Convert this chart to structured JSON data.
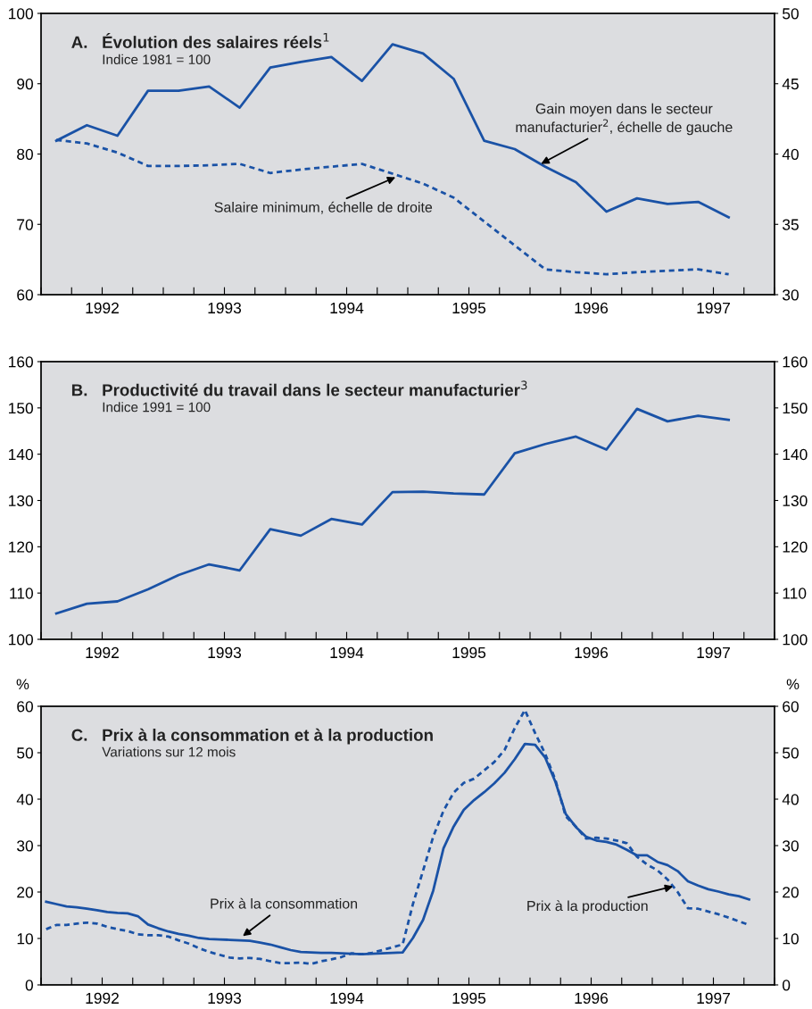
{
  "chart_data": [
    {
      "type": "line",
      "title": "A.   Évolution des salaires réels$^{1}$",
      "subtitle": "Indice 1981 = 100",
      "x": [
        1992.125,
        1992.375,
        1992.625,
        1992.875,
        1993.125,
        1993.375,
        1993.625,
        1993.875,
        1994.125,
        1994.375,
        1994.625,
        1994.875,
        1995.125,
        1995.375,
        1995.625,
        1995.875,
        1996.125,
        1996.375,
        1996.625,
        1996.875,
        1997.125,
        1997.375,
        1997.625
      ],
      "series": [
        {
          "color": "#1a52a6",
          "line_style": "solid",
          "axis": "y",
          "values": [
            81.9,
            84.1,
            82.6,
            89.0,
            89.0,
            89.6,
            86.6,
            92.3,
            93.1,
            93.8,
            90.4,
            95.6,
            94.3,
            90.7,
            81.9,
            80.7,
            78.2,
            76.0,
            71.8,
            73.7,
            72.9,
            73.2,
            71.0
          ]
        },
        {
          "color": "#1a52a6",
          "line_style": "dashed",
          "axis": "y2",
          "values": [
            41.0,
            40.75,
            40.1,
            39.15,
            39.15,
            39.2,
            39.3,
            38.65,
            38.9,
            39.1,
            39.3,
            38.6,
            37.9,
            36.9,
            35.2,
            33.5,
            31.8,
            31.6,
            31.45,
            31.6,
            31.7,
            31.8,
            31.45
          ]
        }
      ],
      "xlim": [
        1992,
        1998
      ],
      "xticks": [
        {
          "value": 1992,
          "label": null
        },
        {
          "value": 1992.25,
          "label": null
        },
        {
          "value": 1992.5,
          "label": "1992"
        },
        {
          "value": 1992.75,
          "label": null
        },
        {
          "value": 1993,
          "label": null
        },
        {
          "value": 1993.25,
          "label": null
        },
        {
          "value": 1993.5,
          "label": "1993"
        },
        {
          "value": 1993.75,
          "label": null
        },
        {
          "value": 1994,
          "label": null
        },
        {
          "value": 1994.25,
          "label": null
        },
        {
          "value": 1994.5,
          "label": "1994"
        },
        {
          "value": 1994.75,
          "label": null
        },
        {
          "value": 1995,
          "label": null
        },
        {
          "value": 1995.25,
          "label": null
        },
        {
          "value": 1995.5,
          "label": "1995"
        },
        {
          "value": 1995.75,
          "label": null
        },
        {
          "value": 1996,
          "label": null
        },
        {
          "value": 1996.25,
          "label": null
        },
        {
          "value": 1996.5,
          "label": "1996"
        },
        {
          "value": 1996.75,
          "label": null
        },
        {
          "value": 1997,
          "label": null
        },
        {
          "value": 1997.25,
          "label": null
        },
        {
          "value": 1997.5,
          "label": "1997"
        },
        {
          "value": 1997.75,
          "label": null
        },
        {
          "value": 1998,
          "label": null
        }
      ],
      "ylim": [
        60,
        100
      ],
      "yticks": [
        60,
        70,
        80,
        90,
        100
      ],
      "y2lim": [
        30,
        50
      ],
      "y2ticks": [
        30,
        35,
        40,
        45,
        50
      ],
      "annotations": [
        {
          "text": "Gain moyen dans le secteur\nmanufacturier$^{2}$, échelle de gauche",
          "x": 1996.09,
          "y": 78.6
        },
        {
          "text": "Salaire minimum, échelle de droite",
          "x": 1994.9,
          "y": 76.7
        }
      ],
      "grid": false
    },
    {
      "type": "line",
      "title": "B.   Productivité du travail dans le secteur manufacturier$^{3}$",
      "subtitle": "Indice 1991 = 100",
      "x": [
        1992.125,
        1992.375,
        1992.625,
        1992.875,
        1993.125,
        1993.375,
        1993.625,
        1993.875,
        1994.125,
        1994.375,
        1994.625,
        1994.875,
        1995.125,
        1995.375,
        1995.625,
        1995.875,
        1996.125,
        1996.375,
        1996.625,
        1996.875,
        1997.125,
        1997.375,
        1997.625
      ],
      "series": [
        {
          "color": "#1a52a6",
          "line_style": "solid",
          "axis": "y",
          "values": [
            105.6,
            107.7,
            108.2,
            110.8,
            113.9,
            116.2,
            114.9,
            123.8,
            122.4,
            126.0,
            124.8,
            131.8,
            131.9,
            131.5,
            131.3,
            140.2,
            142.2,
            143.8,
            141.0,
            149.8,
            147.1,
            148.3,
            147.4
          ]
        }
      ],
      "xlim": [
        1992,
        1998
      ],
      "xticks": [
        {
          "value": 1992,
          "label": null
        },
        {
          "value": 1992.25,
          "label": null
        },
        {
          "value": 1992.5,
          "label": "1992"
        },
        {
          "value": 1992.75,
          "label": null
        },
        {
          "value": 1993,
          "label": null
        },
        {
          "value": 1993.25,
          "label": null
        },
        {
          "value": 1993.5,
          "label": "1993"
        },
        {
          "value": 1993.75,
          "label": null
        },
        {
          "value": 1994,
          "label": null
        },
        {
          "value": 1994.25,
          "label": null
        },
        {
          "value": 1994.5,
          "label": "1994"
        },
        {
          "value": 1994.75,
          "label": null
        },
        {
          "value": 1995,
          "label": null
        },
        {
          "value": 1995.25,
          "label": null
        },
        {
          "value": 1995.5,
          "label": "1995"
        },
        {
          "value": 1995.75,
          "label": null
        },
        {
          "value": 1996,
          "label": null
        },
        {
          "value": 1996.25,
          "label": null
        },
        {
          "value": 1996.5,
          "label": "1996"
        },
        {
          "value": 1996.75,
          "label": null
        },
        {
          "value": 1997,
          "label": null
        },
        {
          "value": 1997.25,
          "label": null
        },
        {
          "value": 1997.5,
          "label": "1997"
        },
        {
          "value": 1997.75,
          "label": null
        },
        {
          "value": 1998,
          "label": null
        }
      ],
      "ylim": [
        100,
        160
      ],
      "yticks": [
        100,
        110,
        120,
        130,
        140,
        150,
        160
      ],
      "y2lim": [
        100,
        160
      ],
      "y2ticks": [
        100,
        110,
        120,
        130,
        140,
        150,
        160
      ],
      "grid": false
    },
    {
      "type": "line",
      "title": "C.   Prix à la consommation et à la production",
      "subtitle": "Variations sur 12 mois",
      "ylabel": "%",
      "y2label": "%",
      "x": [
        1992.042,
        1992.125,
        1992.208,
        1992.292,
        1992.375,
        1992.458,
        1992.542,
        1992.625,
        1992.708,
        1992.792,
        1992.875,
        1992.958,
        1993.042,
        1993.125,
        1993.208,
        1993.292,
        1993.375,
        1993.458,
        1993.542,
        1993.625,
        1993.708,
        1993.792,
        1993.875,
        1993.958,
        1994.042,
        1994.125,
        1994.208,
        1994.292,
        1994.375,
        1994.458,
        1994.542,
        1994.625,
        1994.708,
        1994.792,
        1994.875,
        1994.958,
        1995.042,
        1995.125,
        1995.208,
        1995.292,
        1995.375,
        1995.458,
        1995.542,
        1995.625,
        1995.708,
        1995.792,
        1995.875,
        1995.958,
        1996.042,
        1996.125,
        1996.208,
        1996.292,
        1996.375,
        1996.458,
        1996.542,
        1996.625,
        1996.708,
        1996.792,
        1996.875,
        1996.958,
        1997.042,
        1997.125,
        1997.208,
        1997.292,
        1997.375,
        1997.458,
        1997.542,
        1997.625,
        1997.708,
        1997.792
      ],
      "series": [
        {
          "color": "#1a52a6",
          "line_style": "solid",
          "axis": "y",
          "values": [
            17.9,
            17.4,
            16.9,
            16.7,
            16.4,
            16.1,
            15.7,
            15.5,
            15.4,
            14.8,
            13.0,
            12.2,
            11.5,
            11.0,
            10.6,
            10.1,
            9.9,
            9.8,
            9.7,
            9.6,
            9.5,
            9.1,
            8.7,
            8.1,
            7.5,
            7.1,
            7.0,
            6.9,
            6.9,
            6.8,
            6.7,
            6.6,
            6.7,
            6.8,
            6.9,
            7.0,
            10.1,
            14.0,
            20.3,
            29.4,
            34.1,
            37.7,
            39.8,
            41.5,
            43.4,
            45.7,
            48.6,
            51.9,
            51.7,
            48.9,
            43.7,
            36.8,
            34.0,
            31.9,
            31.1,
            30.8,
            30.2,
            29.1,
            27.9,
            27.9,
            26.5,
            25.8,
            24.5,
            22.3,
            21.4,
            20.6,
            20.1,
            19.5,
            19.1,
            18.4
          ]
        },
        {
          "color": "#1a52a6",
          "line_style": "dashed",
          "axis": "y",
          "values": [
            12.0,
            12.9,
            12.9,
            13.2,
            13.4,
            13.2,
            12.5,
            12.0,
            11.6,
            10.9,
            10.7,
            10.7,
            10.4,
            9.6,
            8.9,
            7.9,
            7.1,
            6.5,
            5.9,
            5.7,
            5.8,
            5.6,
            5.1,
            4.7,
            4.7,
            4.8,
            4.5,
            5.1,
            5.5,
            6.0,
            6.8,
            6.6,
            6.9,
            7.5,
            8.1,
            8.7,
            17.4,
            24.6,
            31.9,
            37.5,
            41.4,
            43.5,
            44.4,
            46.2,
            48.0,
            50.6,
            55.3,
            59.2,
            54.2,
            49.7,
            44.1,
            36.3,
            34.1,
            31.5,
            31.7,
            31.5,
            31.1,
            30.5,
            27.6,
            25.9,
            24.7,
            22.7,
            20.0,
            16.5,
            16.4,
            15.8,
            15.2,
            14.5,
            13.7,
            12.9
          ]
        }
      ],
      "xlim": [
        1992,
        1998
      ],
      "xticks": [
        {
          "value": 1992,
          "label": null
        },
        {
          "value": 1992.25,
          "label": null
        },
        {
          "value": 1992.5,
          "label": "1992"
        },
        {
          "value": 1992.75,
          "label": null
        },
        {
          "value": 1993,
          "label": null
        },
        {
          "value": 1993.25,
          "label": null
        },
        {
          "value": 1993.5,
          "label": "1993"
        },
        {
          "value": 1993.75,
          "label": null
        },
        {
          "value": 1994,
          "label": null
        },
        {
          "value": 1994.25,
          "label": null
        },
        {
          "value": 1994.5,
          "label": "1994"
        },
        {
          "value": 1994.75,
          "label": null
        },
        {
          "value": 1995,
          "label": null
        },
        {
          "value": 1995.25,
          "label": null
        },
        {
          "value": 1995.5,
          "label": "1995"
        },
        {
          "value": 1995.75,
          "label": null
        },
        {
          "value": 1996,
          "label": null
        },
        {
          "value": 1996.25,
          "label": null
        },
        {
          "value": 1996.5,
          "label": "1996"
        },
        {
          "value": 1996.75,
          "label": null
        },
        {
          "value": 1997,
          "label": null
        },
        {
          "value": 1997.25,
          "label": null
        },
        {
          "value": 1997.5,
          "label": "1997"
        },
        {
          "value": 1997.75,
          "label": null
        },
        {
          "value": 1998,
          "label": null
        }
      ],
      "ylim": [
        0,
        60
      ],
      "yticks": [
        0,
        10,
        20,
        30,
        40,
        50,
        60
      ],
      "y2lim": [
        0,
        60
      ],
      "y2ticks": [
        0,
        10,
        20,
        30,
        40,
        50,
        60
      ],
      "annotations": [
        {
          "text": "Prix à la consommation",
          "x": 1993.65,
          "y": 10.5
        },
        {
          "text": "Prix à la production",
          "x": 1997.17,
          "y": 21.2
        }
      ],
      "grid": false
    }
  ]
}
